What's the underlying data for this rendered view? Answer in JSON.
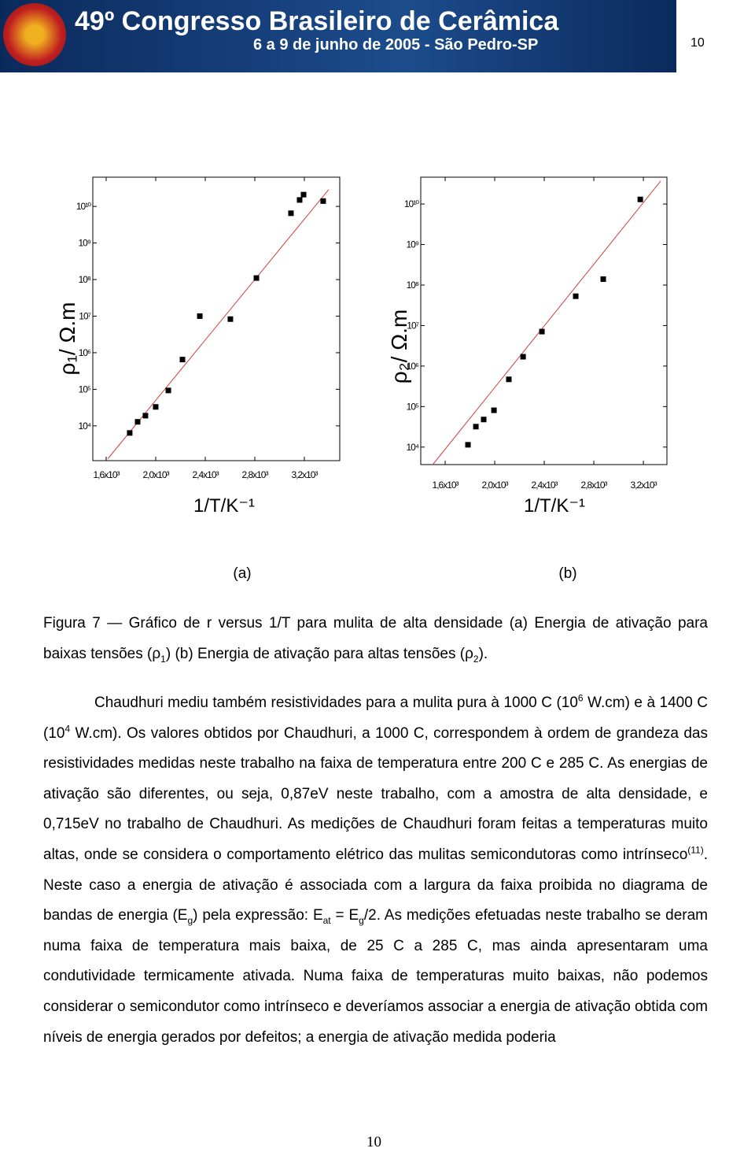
{
  "header": {
    "title": "49º Congresso Brasileiro de Cerâmica",
    "subtitle": "6 a 9 de junho de 2005 - São Pedro-SP",
    "page": "10"
  },
  "chart_data": [
    {
      "type": "scatter",
      "y_title": "ρ₁/ Ω.m",
      "x_title": "1/T/K⁻¹",
      "panel": "(a)",
      "log_y": true,
      "xlim": [
        1492,
        3486
      ],
      "ylim": [
        1120,
        63000000000
      ],
      "xticks": [
        {
          "value": 1600,
          "label": "1,6x10³"
        },
        {
          "value": 2000,
          "label": "2,0x10³"
        },
        {
          "value": 2400,
          "label": "2,4x10³"
        },
        {
          "value": 2800,
          "label": "2,8x10³"
        },
        {
          "value": 3200,
          "label": "3,2x10³"
        }
      ],
      "yticks": [
        {
          "value": 10000,
          "label": "10⁴"
        },
        {
          "value": 100000,
          "label": "10⁵"
        },
        {
          "value": 1000000,
          "label": "10⁶"
        },
        {
          "value": 10000000,
          "label": "10⁷"
        },
        {
          "value": 100000000,
          "label": "10⁸"
        },
        {
          "value": 1000000000,
          "label": "10⁹"
        },
        {
          "value": 10000000000,
          "label": "10¹⁰"
        }
      ],
      "series": [
        {
          "color": "#000000",
          "x": [
            1790,
            1854,
            1917,
            2000,
            2102,
            2216,
            2356,
            2603,
            2813,
            3092,
            3162,
            3194,
            3352
          ],
          "values": [
            6400,
            12900,
            19000,
            33000,
            93000,
            650000,
            10000000,
            8300000,
            110000000,
            6500000000,
            15000000000,
            21000000000,
            14000000000
          ]
        }
      ],
      "fit": {
        "color": "#d04040",
        "x": [
          1613,
          3397
        ],
        "values": [
          1260,
          29000000000
        ]
      }
    },
    {
      "type": "scatter",
      "y_title": "ρ₂/ Ω.m",
      "x_title": "1/T/K⁻¹",
      "panel": "(b)",
      "log_y": true,
      "xlim": [
        1403,
        3390
      ],
      "ylim": [
        3700,
        46000000000
      ],
      "xticks": [
        {
          "value": 1600,
          "label": "1,6x10³"
        },
        {
          "value": 2000,
          "label": "2,0x10³"
        },
        {
          "value": 2400,
          "label": "2,4x10³"
        },
        {
          "value": 2800,
          "label": "2,8x10³"
        },
        {
          "value": 3200,
          "label": "3,2x10³"
        }
      ],
      "yticks": [
        {
          "value": 10000,
          "label": "10⁴"
        },
        {
          "value": 100000,
          "label": "10⁵"
        },
        {
          "value": 1000000,
          "label": "10⁶"
        },
        {
          "value": 10000000,
          "label": "10⁷"
        },
        {
          "value": 100000000,
          "label": "10⁸"
        },
        {
          "value": 1000000000,
          "label": "10⁹"
        },
        {
          "value": 10000000000,
          "label": "10¹⁰"
        }
      ],
      "series": [
        {
          "color": "#000000",
          "x": [
            1784,
            1848,
            1911,
            1994,
            2114,
            2229,
            2381,
            2654,
            2876,
            3175
          ],
          "values": [
            11400,
            32000,
            48000,
            81000,
            470000,
            1700000,
            7100000,
            53000000,
            140000000,
            13000000000
          ]
        }
      ],
      "fit": {
        "color": "#d04040",
        "x": [
          1500,
          3340
        ],
        "values": [
          3700,
          37000000000
        ]
      }
    }
  ],
  "caption": [
    "Figura 7 — Gráfico de r versus 1/T para mulita de alta densidade (a) Energia de ativação para baixas tensões (ρ",
    {
      "sub": "1"
    },
    ") (b) Energia de ativação para altas tensões (ρ",
    {
      "sub": "2"
    },
    ")."
  ],
  "paragraph": [
    "Chaudhuri mediu também resistividades para a mulita pura à 1000 C (10",
    {
      "sup": "6"
    },
    " W.cm) e à 1400 C (10",
    {
      "sup": "4"
    },
    " W.cm). Os valores obtidos por Chaudhuri, a 1000 C, correspondem à ordem de grandeza das resistividades medidas neste trabalho na faixa de temperatura entre 200 C e 285 C. As energias de ativação são diferentes, ou seja, 0,87eV neste trabalho, com a amostra de alta densidade, e 0,715eV no trabalho de Chaudhuri. As medições de Chaudhuri foram feitas a temperaturas muito altas, onde se considera  o comportamento elétrico das mulitas semicondutoras como intrínseco",
    {
      "sup": "(11)"
    },
    ". Neste caso a energia de ativação é associada com a largura da faixa proibida no diagrama de bandas de energia (E",
    {
      "sub": "g"
    },
    ") pela expressão: E",
    {
      "sub": "at"
    },
    " = E",
    {
      "sub": "g"
    },
    "/2. As medições efetuadas neste trabalho se deram numa faixa de temperatura mais baixa, de 25 C a 285  C, mas ainda apresentaram uma condutividade termicamente ativada. Numa faixa de temperaturas muito baixas, não podemos considerar o semicondutor como intrínseco e deveríamos associar a energia de ativação obtida com níveis de energia gerados por defeitos; a energia de ativação medida poderia"
  ],
  "footer": "10"
}
